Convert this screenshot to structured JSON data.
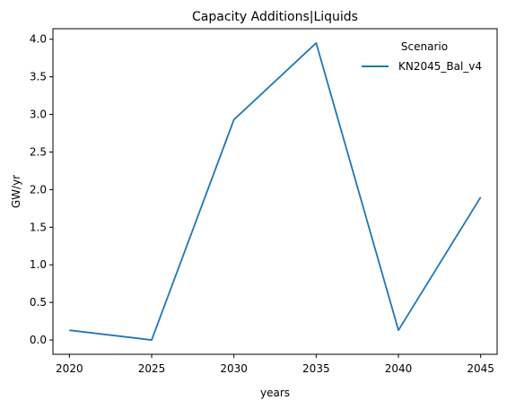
{
  "chart_data": {
    "type": "line",
    "title": "Capacity Additions|Liquids",
    "xlabel": "years",
    "ylabel": "GW/yr",
    "x": [
      2020,
      2025,
      2030,
      2035,
      2040,
      2045
    ],
    "x_ticks": [
      "2020",
      "2025",
      "2030",
      "2035",
      "2040",
      "2045"
    ],
    "y_ticks": [
      "0.0",
      "0.5",
      "1.0",
      "1.5",
      "2.0",
      "2.5",
      "3.0",
      "3.5",
      "4.0"
    ],
    "ylim": [
      -0.19,
      4.14
    ],
    "xlim": [
      2019.0,
      2046.0
    ],
    "grid": false,
    "legend": {
      "title": "Scenario",
      "placement": "top-right"
    },
    "series": [
      {
        "name": "KN2045_Bal_v4",
        "color": "#1f77b4",
        "values": [
          0.13,
          0.0,
          2.93,
          3.95,
          0.13,
          1.9
        ]
      }
    ]
  }
}
